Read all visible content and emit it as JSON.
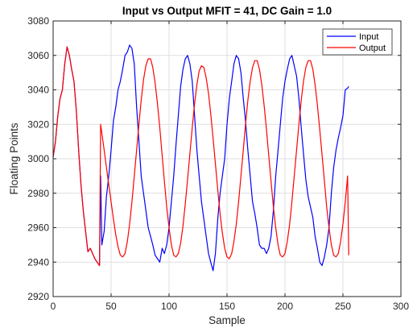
{
  "chart_data": {
    "type": "line",
    "title": "Input vs Output MFIT = 41, DC Gain = 1.0",
    "xlabel": "Sample",
    "ylabel": "Floating Points",
    "xlim": [
      0,
      300
    ],
    "ylim": [
      2920,
      3080
    ],
    "xticks": [
      0,
      50,
      100,
      150,
      200,
      250,
      300
    ],
    "yticks": [
      2920,
      2940,
      2960,
      2980,
      3000,
      3020,
      3040,
      3060,
      3080
    ],
    "grid": true,
    "legend": "top-right",
    "colors": {
      "Input": "#0000ff",
      "Output": "#ff0000",
      "axes": "#262626",
      "grid": "#dfdfdf"
    },
    "series": [
      {
        "name": "Input",
        "color": "#0000ff",
        "x": [
          0,
          2,
          4,
          6,
          8,
          10,
          12,
          14,
          16,
          18,
          20,
          22,
          24,
          26,
          28,
          30,
          32,
          34,
          36,
          38,
          40,
          41,
          42,
          44,
          46,
          48,
          50,
          52,
          54,
          56,
          58,
          60,
          62,
          64,
          66,
          68,
          70,
          72,
          74,
          76,
          78,
          80,
          82,
          84,
          86,
          88,
          90,
          92,
          94,
          96,
          98,
          100,
          102,
          104,
          106,
          108,
          110,
          112,
          114,
          116,
          118,
          120,
          122,
          124,
          126,
          128,
          130,
          132,
          134,
          136,
          138,
          140,
          142,
          144,
          146,
          148,
          150,
          152,
          154,
          156,
          158,
          160,
          162,
          164,
          166,
          168,
          170,
          172,
          174,
          176,
          178,
          180,
          182,
          184,
          186,
          188,
          190,
          192,
          194,
          196,
          198,
          200,
          202,
          204,
          206,
          208,
          210,
          212,
          214,
          216,
          218,
          220,
          222,
          224,
          226,
          228,
          230,
          232,
          234,
          236,
          238,
          240,
          242,
          244,
          246,
          248,
          250,
          252,
          254,
          255
        ],
        "y": [
          3001,
          3010,
          3025,
          3035,
          3040,
          3055,
          3065,
          3060,
          3052,
          3045,
          3028,
          3005,
          2985,
          2970,
          2958,
          2946,
          2948,
          2945,
          2942,
          2940,
          2938,
          2990,
          2950,
          2958,
          2978,
          2990,
          3005,
          3022,
          3030,
          3040,
          3045,
          3052,
          3060,
          3062,
          3066,
          3064,
          3055,
          3030,
          3010,
          2990,
          2980,
          2970,
          2960,
          2955,
          2950,
          2944,
          2942,
          2940,
          2948,
          2945,
          2950,
          2960,
          2975,
          2990,
          3008,
          3025,
          3042,
          3052,
          3058,
          3060,
          3055,
          3045,
          3025,
          3005,
          2990,
          2975,
          2965,
          2955,
          2945,
          2940,
          2935,
          2945,
          2965,
          2980,
          2990,
          3000,
          3020,
          3035,
          3045,
          3055,
          3060,
          3058,
          3050,
          3035,
          3022,
          3005,
          2990,
          2975,
          2968,
          2960,
          2950,
          2948,
          2948,
          2945,
          2948,
          2955,
          2970,
          2990,
          3005,
          3020,
          3035,
          3045,
          3052,
          3058,
          3060,
          3054,
          3048,
          3035,
          3018,
          3003,
          2988,
          2978,
          2972,
          2966,
          2955,
          2948,
          2940,
          2938,
          2943,
          2950,
          2960,
          2980,
          2995,
          3005,
          3012,
          3018,
          3025,
          3040,
          3041,
          3042
        ]
      },
      {
        "name": "Output",
        "color": "#ff0000",
        "x": [
          0,
          2,
          4,
          6,
          8,
          10,
          12,
          14,
          16,
          18,
          20,
          22,
          24,
          26,
          28,
          30,
          32,
          34,
          36,
          38,
          40,
          41,
          42,
          44,
          46,
          48,
          50,
          52,
          54,
          56,
          58,
          60,
          62,
          64,
          66,
          68,
          70,
          72,
          74,
          76,
          78,
          80,
          82,
          84,
          86,
          88,
          90,
          92,
          94,
          96,
          98,
          100,
          102,
          104,
          106,
          108,
          110,
          112,
          114,
          116,
          118,
          120,
          122,
          124,
          126,
          128,
          130,
          132,
          134,
          136,
          138,
          140,
          142,
          144,
          146,
          148,
          150,
          152,
          154,
          156,
          158,
          160,
          162,
          164,
          166,
          168,
          170,
          172,
          174,
          176,
          178,
          180,
          182,
          184,
          186,
          188,
          190,
          192,
          194,
          196,
          198,
          200,
          202,
          204,
          206,
          208,
          210,
          212,
          214,
          216,
          218,
          220,
          222,
          224,
          226,
          228,
          230,
          232,
          234,
          236,
          238,
          240,
          242,
          244,
          246,
          248,
          250,
          252,
          254,
          255
        ],
        "y": [
          3001,
          3010,
          3025,
          3035,
          3040,
          3055,
          3065,
          3060,
          3052,
          3045,
          3028,
          3005,
          2985,
          2970,
          2958,
          2946,
          2948,
          2945,
          2942,
          2940,
          2938,
          3020,
          3015,
          3005,
          2995,
          2985,
          2975,
          2965,
          2956,
          2949,
          2944,
          2943,
          2945,
          2952,
          2962,
          2975,
          2990,
          3005,
          3020,
          3034,
          3046,
          3054,
          3058,
          3058,
          3053,
          3044,
          3032,
          3018,
          3002,
          2987,
          2972,
          2960,
          2950,
          2944,
          2943,
          2945,
          2951,
          2961,
          2974,
          2988,
          3003,
          3018,
          3032,
          3043,
          3051,
          3054,
          3053,
          3047,
          3038,
          3026,
          3012,
          2997,
          2982,
          2968,
          2957,
          2948,
          2943,
          2942,
          2945,
          2952,
          2962,
          2975,
          2990,
          3005,
          3020,
          3034,
          3045,
          3053,
          3057,
          3057,
          3052,
          3043,
          3031,
          3017,
          3002,
          2987,
          2972,
          2960,
          2950,
          2944,
          2943,
          2945,
          2952,
          2962,
          2975,
          2990,
          3005,
          3020,
          3034,
          3045,
          3053,
          3057,
          3057,
          3052,
          3043,
          3031,
          3017,
          3002,
          2987,
          2972,
          2960,
          2950,
          2944,
          2943,
          2945,
          2952,
          2962,
          2975,
          2990,
          2944
        ]
      }
    ]
  }
}
